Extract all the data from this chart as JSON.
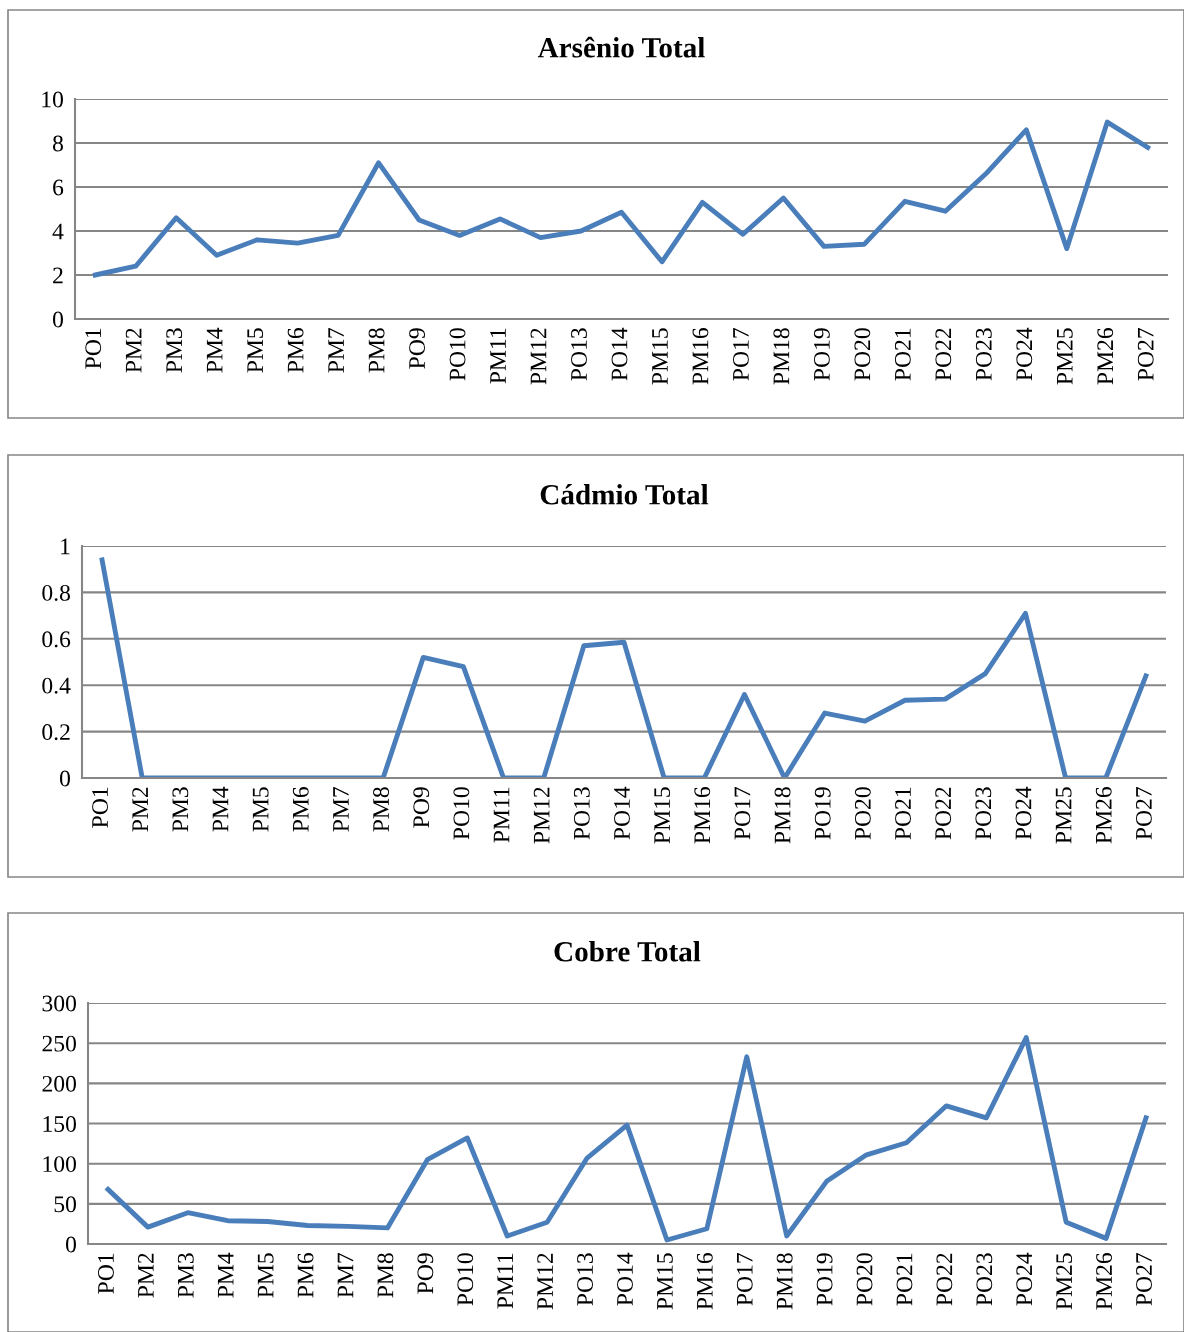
{
  "chart_data": [
    {
      "type": "line",
      "title": "Arsênio Total",
      "categories": [
        "PO1",
        "PM2",
        "PM3",
        "PM4",
        "PM5",
        "PM6",
        "PM7",
        "PM8",
        "PO9",
        "PO10",
        "PM11",
        "PM12",
        "PO13",
        "PO14",
        "PM15",
        "PM16",
        "PO17",
        "PM18",
        "PO19",
        "PO20",
        "PO21",
        "PO22",
        "PO23",
        "PO24",
        "PM25",
        "PM26",
        "PO27"
      ],
      "series": [
        {
          "color": "#4a7ebb",
          "values": [
            2.0,
            2.4,
            4.6,
            2.9,
            3.6,
            3.45,
            3.8,
            7.1,
            4.5,
            3.8,
            4.55,
            3.7,
            4.0,
            4.85,
            2.6,
            5.3,
            3.85,
            5.5,
            3.3,
            3.4,
            5.35,
            4.9,
            6.6,
            8.6,
            3.2,
            8.95,
            7.8
          ]
        }
      ],
      "ylim": [
        0,
        10
      ],
      "yticks": [
        0,
        2,
        4,
        6,
        8,
        10
      ],
      "grid": "y",
      "legend": false,
      "marker": "none",
      "line_style": "solid"
    },
    {
      "type": "line",
      "title": "Cádmio Total",
      "categories": [
        "PO1",
        "PM2",
        "PM3",
        "PM4",
        "PM5",
        "PM6",
        "PM7",
        "PM8",
        "PO9",
        "PO10",
        "PM11",
        "PM12",
        "PO13",
        "PO14",
        "PM15",
        "PM16",
        "PO17",
        "PM18",
        "PO19",
        "PO20",
        "PO21",
        "PO22",
        "PO23",
        "PO24",
        "PM25",
        "PM26",
        "PO27"
      ],
      "series": [
        {
          "color": "#4a7ebb",
          "values": [
            0.94,
            0,
            0,
            0,
            0,
            0,
            0,
            0,
            0.52,
            0.48,
            0,
            0,
            0.57,
            0.585,
            0,
            0,
            0.36,
            0,
            0.28,
            0.245,
            0.335,
            0.34,
            0.45,
            0.71,
            0,
            0,
            0.44
          ]
        }
      ],
      "ylim": [
        0,
        1
      ],
      "yticks": [
        0,
        0.2,
        0.4,
        0.6,
        0.8,
        1
      ],
      "grid": "y",
      "legend": false,
      "marker": "none",
      "line_style": "solid"
    },
    {
      "type": "line",
      "title": "Cobre Total",
      "categories": [
        "PO1",
        "PM2",
        "PM3",
        "PM4",
        "PM5",
        "PM6",
        "PM7",
        "PM8",
        "PO9",
        "PO10",
        "PM11",
        "PM12",
        "PO13",
        "PO14",
        "PM15",
        "PM16",
        "PO17",
        "PM18",
        "PO19",
        "PO20",
        "PO21",
        "PO22",
        "PO23",
        "PO24",
        "PM25",
        "PM26",
        "PO27"
      ],
      "series": [
        {
          "color": "#4a7ebb",
          "values": [
            68,
            21,
            39,
            29,
            28,
            23,
            22,
            20,
            105,
            132,
            10,
            27,
            107,
            148,
            5,
            19,
            233,
            10,
            78,
            111,
            126,
            172,
            157,
            257,
            27,
            7,
            157
          ]
        }
      ],
      "ylim": [
        0,
        300
      ],
      "yticks": [
        0,
        50,
        100,
        150,
        200,
        250,
        300
      ],
      "grid": "y",
      "legend": false,
      "marker": "none",
      "line_style": "solid"
    }
  ]
}
